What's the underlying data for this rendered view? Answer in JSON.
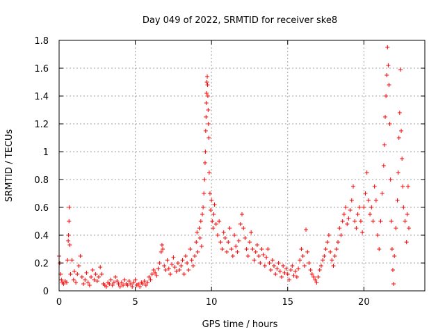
{
  "chart_data": {
    "type": "scatter",
    "title": "Day 049 of 2022, SRMTID for receiver ske8",
    "xlabel": "GPS time / hours",
    "ylabel": "SRMTID / TECUs",
    "xlim": [
      0,
      24
    ],
    "ylim": [
      0,
      1.8
    ],
    "x_ticks": [
      0,
      5,
      10,
      15,
      20
    ],
    "x_tick_labels": [
      "0",
      "5",
      "10",
      "15",
      "20"
    ],
    "y_ticks": [
      0,
      0.2,
      0.4,
      0.6,
      0.8,
      1,
      1.2,
      1.4,
      1.6,
      1.8
    ],
    "y_tick_labels": [
      "0",
      "0.2",
      "0.4",
      "0.6",
      "0.8",
      "1",
      "1.2",
      "1.4",
      "1.6",
      "1.8"
    ],
    "grid": true,
    "marker": "+",
    "colors": {
      "series": "#ff0000",
      "grid": "#a0a0a0",
      "axis": "#000000"
    },
    "series": [
      {
        "name": "SRMTID",
        "points": [
          [
            0.0,
            0.25
          ],
          [
            0.05,
            0.2
          ],
          [
            0.1,
            0.12
          ],
          [
            0.15,
            0.08
          ],
          [
            0.2,
            0.06
          ],
          [
            0.3,
            0.05
          ],
          [
            0.4,
            0.07
          ],
          [
            0.5,
            0.06
          ],
          [
            0.55,
            0.22
          ],
          [
            0.6,
            0.36
          ],
          [
            0.62,
            0.4
          ],
          [
            0.65,
            0.5
          ],
          [
            0.67,
            0.6
          ],
          [
            0.7,
            0.33
          ],
          [
            0.75,
            0.12
          ],
          [
            0.85,
            0.22
          ],
          [
            0.95,
            0.08
          ],
          [
            1.0,
            0.14
          ],
          [
            1.1,
            0.06
          ],
          [
            1.2,
            0.12
          ],
          [
            1.3,
            0.18
          ],
          [
            1.4,
            0.25
          ],
          [
            1.5,
            0.1
          ],
          [
            1.6,
            0.05
          ],
          [
            1.7,
            0.08
          ],
          [
            1.8,
            0.13
          ],
          [
            1.9,
            0.06
          ],
          [
            2.0,
            0.04
          ],
          [
            2.1,
            0.1
          ],
          [
            2.2,
            0.15
          ],
          [
            2.3,
            0.08
          ],
          [
            2.4,
            0.12
          ],
          [
            2.5,
            0.07
          ],
          [
            2.6,
            0.1
          ],
          [
            2.7,
            0.17
          ],
          [
            2.8,
            0.12
          ],
          [
            2.9,
            0.05
          ],
          [
            3.0,
            0.04
          ],
          [
            3.1,
            0.03
          ],
          [
            3.2,
            0.06
          ],
          [
            3.3,
            0.05
          ],
          [
            3.4,
            0.08
          ],
          [
            3.5,
            0.04
          ],
          [
            3.6,
            0.06
          ],
          [
            3.7,
            0.1
          ],
          [
            3.8,
            0.07
          ],
          [
            3.9,
            0.05
          ],
          [
            4.0,
            0.03
          ],
          [
            4.1,
            0.06
          ],
          [
            4.2,
            0.04
          ],
          [
            4.3,
            0.08
          ],
          [
            4.4,
            0.05
          ],
          [
            4.5,
            0.04
          ],
          [
            4.6,
            0.07
          ],
          [
            4.7,
            0.05
          ],
          [
            4.8,
            0.03
          ],
          [
            4.9,
            0.06
          ],
          [
            5.0,
            0.08
          ],
          [
            5.1,
            0.04
          ],
          [
            5.2,
            0.05
          ],
          [
            5.3,
            0.03
          ],
          [
            5.4,
            0.06
          ],
          [
            5.5,
            0.05
          ],
          [
            5.6,
            0.07
          ],
          [
            5.7,
            0.04
          ],
          [
            5.8,
            0.06
          ],
          [
            5.9,
            0.1
          ],
          [
            6.0,
            0.08
          ],
          [
            6.1,
            0.12
          ],
          [
            6.2,
            0.15
          ],
          [
            6.3,
            0.13
          ],
          [
            6.4,
            0.11
          ],
          [
            6.5,
            0.16
          ],
          [
            6.6,
            0.2
          ],
          [
            6.7,
            0.28
          ],
          [
            6.75,
            0.33
          ],
          [
            6.8,
            0.3
          ],
          [
            6.9,
            0.18
          ],
          [
            7.0,
            0.15
          ],
          [
            7.1,
            0.22
          ],
          [
            7.2,
            0.16
          ],
          [
            7.3,
            0.12
          ],
          [
            7.4,
            0.19
          ],
          [
            7.5,
            0.24
          ],
          [
            7.6,
            0.17
          ],
          [
            7.7,
            0.14
          ],
          [
            7.8,
            0.2
          ],
          [
            7.9,
            0.15
          ],
          [
            8.0,
            0.18
          ],
          [
            8.1,
            0.22
          ],
          [
            8.2,
            0.12
          ],
          [
            8.3,
            0.25
          ],
          [
            8.4,
            0.2
          ],
          [
            8.5,
            0.15
          ],
          [
            8.6,
            0.3
          ],
          [
            8.7,
            0.22
          ],
          [
            8.8,
            0.18
          ],
          [
            8.9,
            0.25
          ],
          [
            9.0,
            0.35
          ],
          [
            9.05,
            0.42
          ],
          [
            9.1,
            0.28
          ],
          [
            9.2,
            0.45
          ],
          [
            9.25,
            0.38
          ],
          [
            9.3,
            0.5
          ],
          [
            9.35,
            0.32
          ],
          [
            9.4,
            0.55
          ],
          [
            9.45,
            0.6
          ],
          [
            9.5,
            0.7
          ],
          [
            9.55,
            0.8
          ],
          [
            9.58,
            0.92
          ],
          [
            9.6,
            1.0
          ],
          [
            9.62,
            1.15
          ],
          [
            9.64,
            1.25
          ],
          [
            9.66,
            1.35
          ],
          [
            9.68,
            1.42
          ],
          [
            9.7,
            1.5
          ],
          [
            9.72,
            1.54
          ],
          [
            9.74,
            1.48
          ],
          [
            9.76,
            1.4
          ],
          [
            9.78,
            1.3
          ],
          [
            9.8,
            1.2
          ],
          [
            9.82,
            1.1
          ],
          [
            9.85,
            0.85
          ],
          [
            9.9,
            0.7
          ],
          [
            9.95,
            0.58
          ],
          [
            10.0,
            0.65
          ],
          [
            10.05,
            0.5
          ],
          [
            10.1,
            0.45
          ],
          [
            10.15,
            0.55
          ],
          [
            10.2,
            0.62
          ],
          [
            10.3,
            0.48
          ],
          [
            10.4,
            0.4
          ],
          [
            10.5,
            0.5
          ],
          [
            10.6,
            0.35
          ],
          [
            10.7,
            0.3
          ],
          [
            10.8,
            0.42
          ],
          [
            10.9,
            0.38
          ],
          [
            11.0,
            0.28
          ],
          [
            11.1,
            0.35
          ],
          [
            11.2,
            0.45
          ],
          [
            11.3,
            0.3
          ],
          [
            11.4,
            0.25
          ],
          [
            11.5,
            0.4
          ],
          [
            11.6,
            0.32
          ],
          [
            11.7,
            0.28
          ],
          [
            11.8,
            0.36
          ],
          [
            11.9,
            0.48
          ],
          [
            12.0,
            0.55
          ],
          [
            12.1,
            0.45
          ],
          [
            12.2,
            0.38
          ],
          [
            12.3,
            0.3
          ],
          [
            12.4,
            0.25
          ],
          [
            12.5,
            0.35
          ],
          [
            12.6,
            0.42
          ],
          [
            12.7,
            0.3
          ],
          [
            12.8,
            0.22
          ],
          [
            12.9,
            0.28
          ],
          [
            13.0,
            0.33
          ],
          [
            13.1,
            0.25
          ],
          [
            13.2,
            0.2
          ],
          [
            13.3,
            0.3
          ],
          [
            13.4,
            0.26
          ],
          [
            13.5,
            0.18
          ],
          [
            13.6,
            0.24
          ],
          [
            13.7,
            0.3
          ],
          [
            13.8,
            0.2
          ],
          [
            13.9,
            0.15
          ],
          [
            14.0,
            0.22
          ],
          [
            14.1,
            0.18
          ],
          [
            14.2,
            0.12
          ],
          [
            14.3,
            0.16
          ],
          [
            14.4,
            0.2
          ],
          [
            14.5,
            0.14
          ],
          [
            14.6,
            0.1
          ],
          [
            14.7,
            0.18
          ],
          [
            14.8,
            0.13
          ],
          [
            14.9,
            0.16
          ],
          [
            15.0,
            0.12
          ],
          [
            15.1,
            0.08
          ],
          [
            15.2,
            0.15
          ],
          [
            15.3,
            0.18
          ],
          [
            15.4,
            0.11
          ],
          [
            15.5,
            0.14
          ],
          [
            15.6,
            0.1
          ],
          [
            15.7,
            0.16
          ],
          [
            15.8,
            0.22
          ],
          [
            15.9,
            0.3
          ],
          [
            16.0,
            0.25
          ],
          [
            16.1,
            0.18
          ],
          [
            16.2,
            0.44
          ],
          [
            16.3,
            0.28
          ],
          [
            16.4,
            0.2
          ],
          [
            16.5,
            0.15
          ],
          [
            16.6,
            0.12
          ],
          [
            16.7,
            0.1
          ],
          [
            16.8,
            0.08
          ],
          [
            16.9,
            0.06
          ],
          [
            17.0,
            0.1
          ],
          [
            17.1,
            0.15
          ],
          [
            17.2,
            0.18
          ],
          [
            17.3,
            0.22
          ],
          [
            17.4,
            0.25
          ],
          [
            17.5,
            0.3
          ],
          [
            17.6,
            0.35
          ],
          [
            17.7,
            0.4
          ],
          [
            17.8,
            0.28
          ],
          [
            17.9,
            0.22
          ],
          [
            18.0,
            0.18
          ],
          [
            18.1,
            0.25
          ],
          [
            18.2,
            0.3
          ],
          [
            18.3,
            0.35
          ],
          [
            18.4,
            0.45
          ],
          [
            18.5,
            0.4
          ],
          [
            18.6,
            0.5
          ],
          [
            18.7,
            0.55
          ],
          [
            18.8,
            0.6
          ],
          [
            18.9,
            0.48
          ],
          [
            19.0,
            0.52
          ],
          [
            19.1,
            0.58
          ],
          [
            19.2,
            0.65
          ],
          [
            19.3,
            0.75
          ],
          [
            19.4,
            0.5
          ],
          [
            19.5,
            0.45
          ],
          [
            19.6,
            0.55
          ],
          [
            19.7,
            0.6
          ],
          [
            19.8,
            0.5
          ],
          [
            19.9,
            0.42
          ],
          [
            20.0,
            0.6
          ],
          [
            20.1,
            0.7
          ],
          [
            20.2,
            0.85
          ],
          [
            20.3,
            0.65
          ],
          [
            20.4,
            0.55
          ],
          [
            20.5,
            0.6
          ],
          [
            20.6,
            0.5
          ],
          [
            20.7,
            0.75
          ],
          [
            20.8,
            0.65
          ],
          [
            20.9,
            0.4
          ],
          [
            21.0,
            0.3
          ],
          [
            21.1,
            0.5
          ],
          [
            21.2,
            0.7
          ],
          [
            21.3,
            0.9
          ],
          [
            21.35,
            1.05
          ],
          [
            21.4,
            1.25
          ],
          [
            21.45,
            1.4
          ],
          [
            21.5,
            1.55
          ],
          [
            21.55,
            1.75
          ],
          [
            21.6,
            1.62
          ],
          [
            21.65,
            1.48
          ],
          [
            21.7,
            1.2
          ],
          [
            21.75,
            0.8
          ],
          [
            21.8,
            0.5
          ],
          [
            21.85,
            0.3
          ],
          [
            21.9,
            0.15
          ],
          [
            21.95,
            0.05
          ],
          [
            22.0,
            0.25
          ],
          [
            22.1,
            0.45
          ],
          [
            22.2,
            0.65
          ],
          [
            22.25,
            0.85
          ],
          [
            22.3,
            1.1
          ],
          [
            22.35,
            1.28
          ],
          [
            22.4,
            1.59
          ],
          [
            22.45,
            1.15
          ],
          [
            22.5,
            0.95
          ],
          [
            22.55,
            0.75
          ],
          [
            22.6,
            0.6
          ],
          [
            22.7,
            0.5
          ],
          [
            22.8,
            0.35
          ],
          [
            22.85,
            0.55
          ],
          [
            22.9,
            0.75
          ],
          [
            22.95,
            0.45
          ]
        ]
      }
    ]
  }
}
